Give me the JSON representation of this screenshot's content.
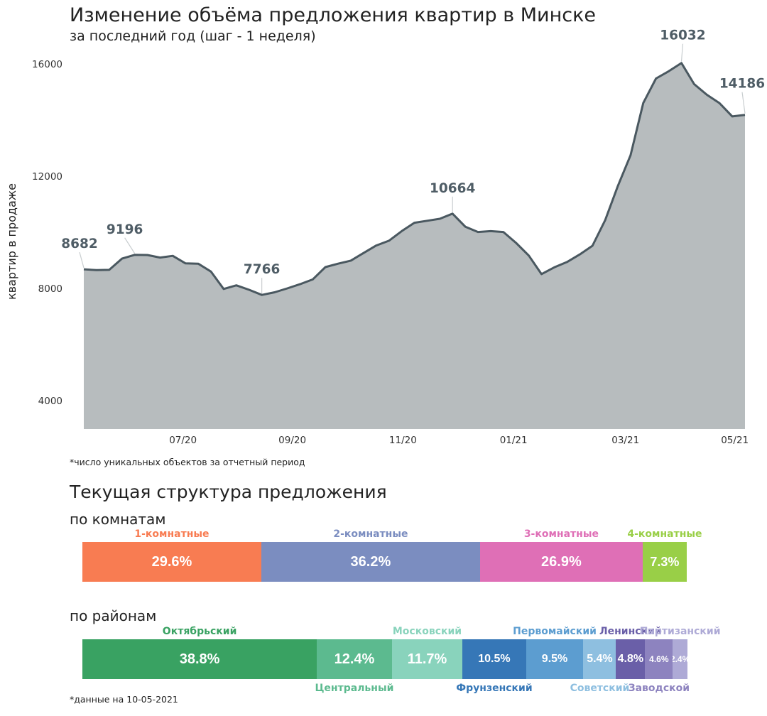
{
  "title": "Изменение объёма предложения квартир в Минске",
  "subtitle": "за последний год (шаг - 1 неделя)",
  "footnote_top": "*число уникальных объектов за отчетный период",
  "structure_title": "Текущая структура предложения",
  "rooms_title": "по комнатам",
  "districts_title": "по районам",
  "footnote_bottom": "*данные на 10-05-2021",
  "colors": {
    "area_fill": "#b7bcbe",
    "line": "#4a5860",
    "axis_text": "#333333"
  },
  "chart_data": {
    "type": "area",
    "ylabel": "квартир в продаже",
    "xlabel": "",
    "ylim": [
      3000,
      16200
    ],
    "yticks": [
      4000,
      8000,
      12000,
      16000
    ],
    "xticks": [
      "07/20",
      "09/20",
      "11/20",
      "01/21",
      "03/21",
      "05/21"
    ],
    "grid": false,
    "series": [
      {
        "values": [
          8682,
          8650,
          8660,
          9060,
          9196,
          9190,
          9100,
          9160,
          8890,
          8880,
          8600,
          7980,
          8110,
          7950,
          7766,
          7860,
          8000,
          8150,
          8320,
          8760,
          8880,
          8990,
          9260,
          9530,
          9700,
          10040,
          10340,
          10410,
          10480,
          10664,
          10200,
          10010,
          10040,
          10010,
          9620,
          9170,
          8510,
          8750,
          8940,
          9210,
          9520,
          10430,
          11650,
          12750,
          14610,
          15480,
          15740,
          16032,
          15280,
          14900,
          14600,
          14130,
          14186
        ]
      }
    ],
    "point_labels": [
      {
        "index": 0,
        "text": "8682"
      },
      {
        "index": 4,
        "text": "9196"
      },
      {
        "index": 14,
        "text": "7766"
      },
      {
        "index": 29,
        "text": "10664"
      },
      {
        "index": 47,
        "text": "16032"
      },
      {
        "index": 52,
        "text": "14186"
      }
    ]
  },
  "rooms": [
    {
      "name": "1-комнатные",
      "value": 29.6,
      "label": "29.6%",
      "color": "#f87c52"
    },
    {
      "name": "2-комнатные",
      "value": 36.2,
      "label": "36.2%",
      "color": "#7b8dc0"
    },
    {
      "name": "3-комнатные",
      "value": 26.9,
      "label": "26.9%",
      "color": "#df6fb6"
    },
    {
      "name": "4-комнатные",
      "value": 7.3,
      "label": "7.3%",
      "color": "#99cf47"
    }
  ],
  "districts": [
    {
      "name": "Октябрьский",
      "value": 38.8,
      "label": "38.8%",
      "color": "#39a262",
      "pos": "top"
    },
    {
      "name": "Центральный",
      "value": 12.4,
      "label": "12.4%",
      "color": "#5cba8f",
      "pos": "bottom"
    },
    {
      "name": "Московский",
      "value": 11.7,
      "label": "11.7%",
      "color": "#89d3bc",
      "pos": "top"
    },
    {
      "name": "Фрунзенский",
      "value": 10.5,
      "label": "10.5%",
      "color": "#3677b7",
      "pos": "bottom"
    },
    {
      "name": "Первомайский",
      "value": 9.5,
      "label": "9.5%",
      "color": "#5c9dd0",
      "pos": "top"
    },
    {
      "name": "Советский",
      "value": 5.4,
      "label": "5.4%",
      "color": "#8ebfe0",
      "pos": "bottom"
    },
    {
      "name": "Ленинский",
      "value": 4.8,
      "label": "4.8%",
      "color": "#6a5fa8",
      "pos": "top"
    },
    {
      "name": "Заводской",
      "value": 4.6,
      "label": "4.6%",
      "color": "#8d83bf",
      "pos": "bottom"
    },
    {
      "name": "Партизанский",
      "value": 2.4,
      "label": "2.4%",
      "color": "#aeaad6",
      "pos": "top"
    }
  ]
}
